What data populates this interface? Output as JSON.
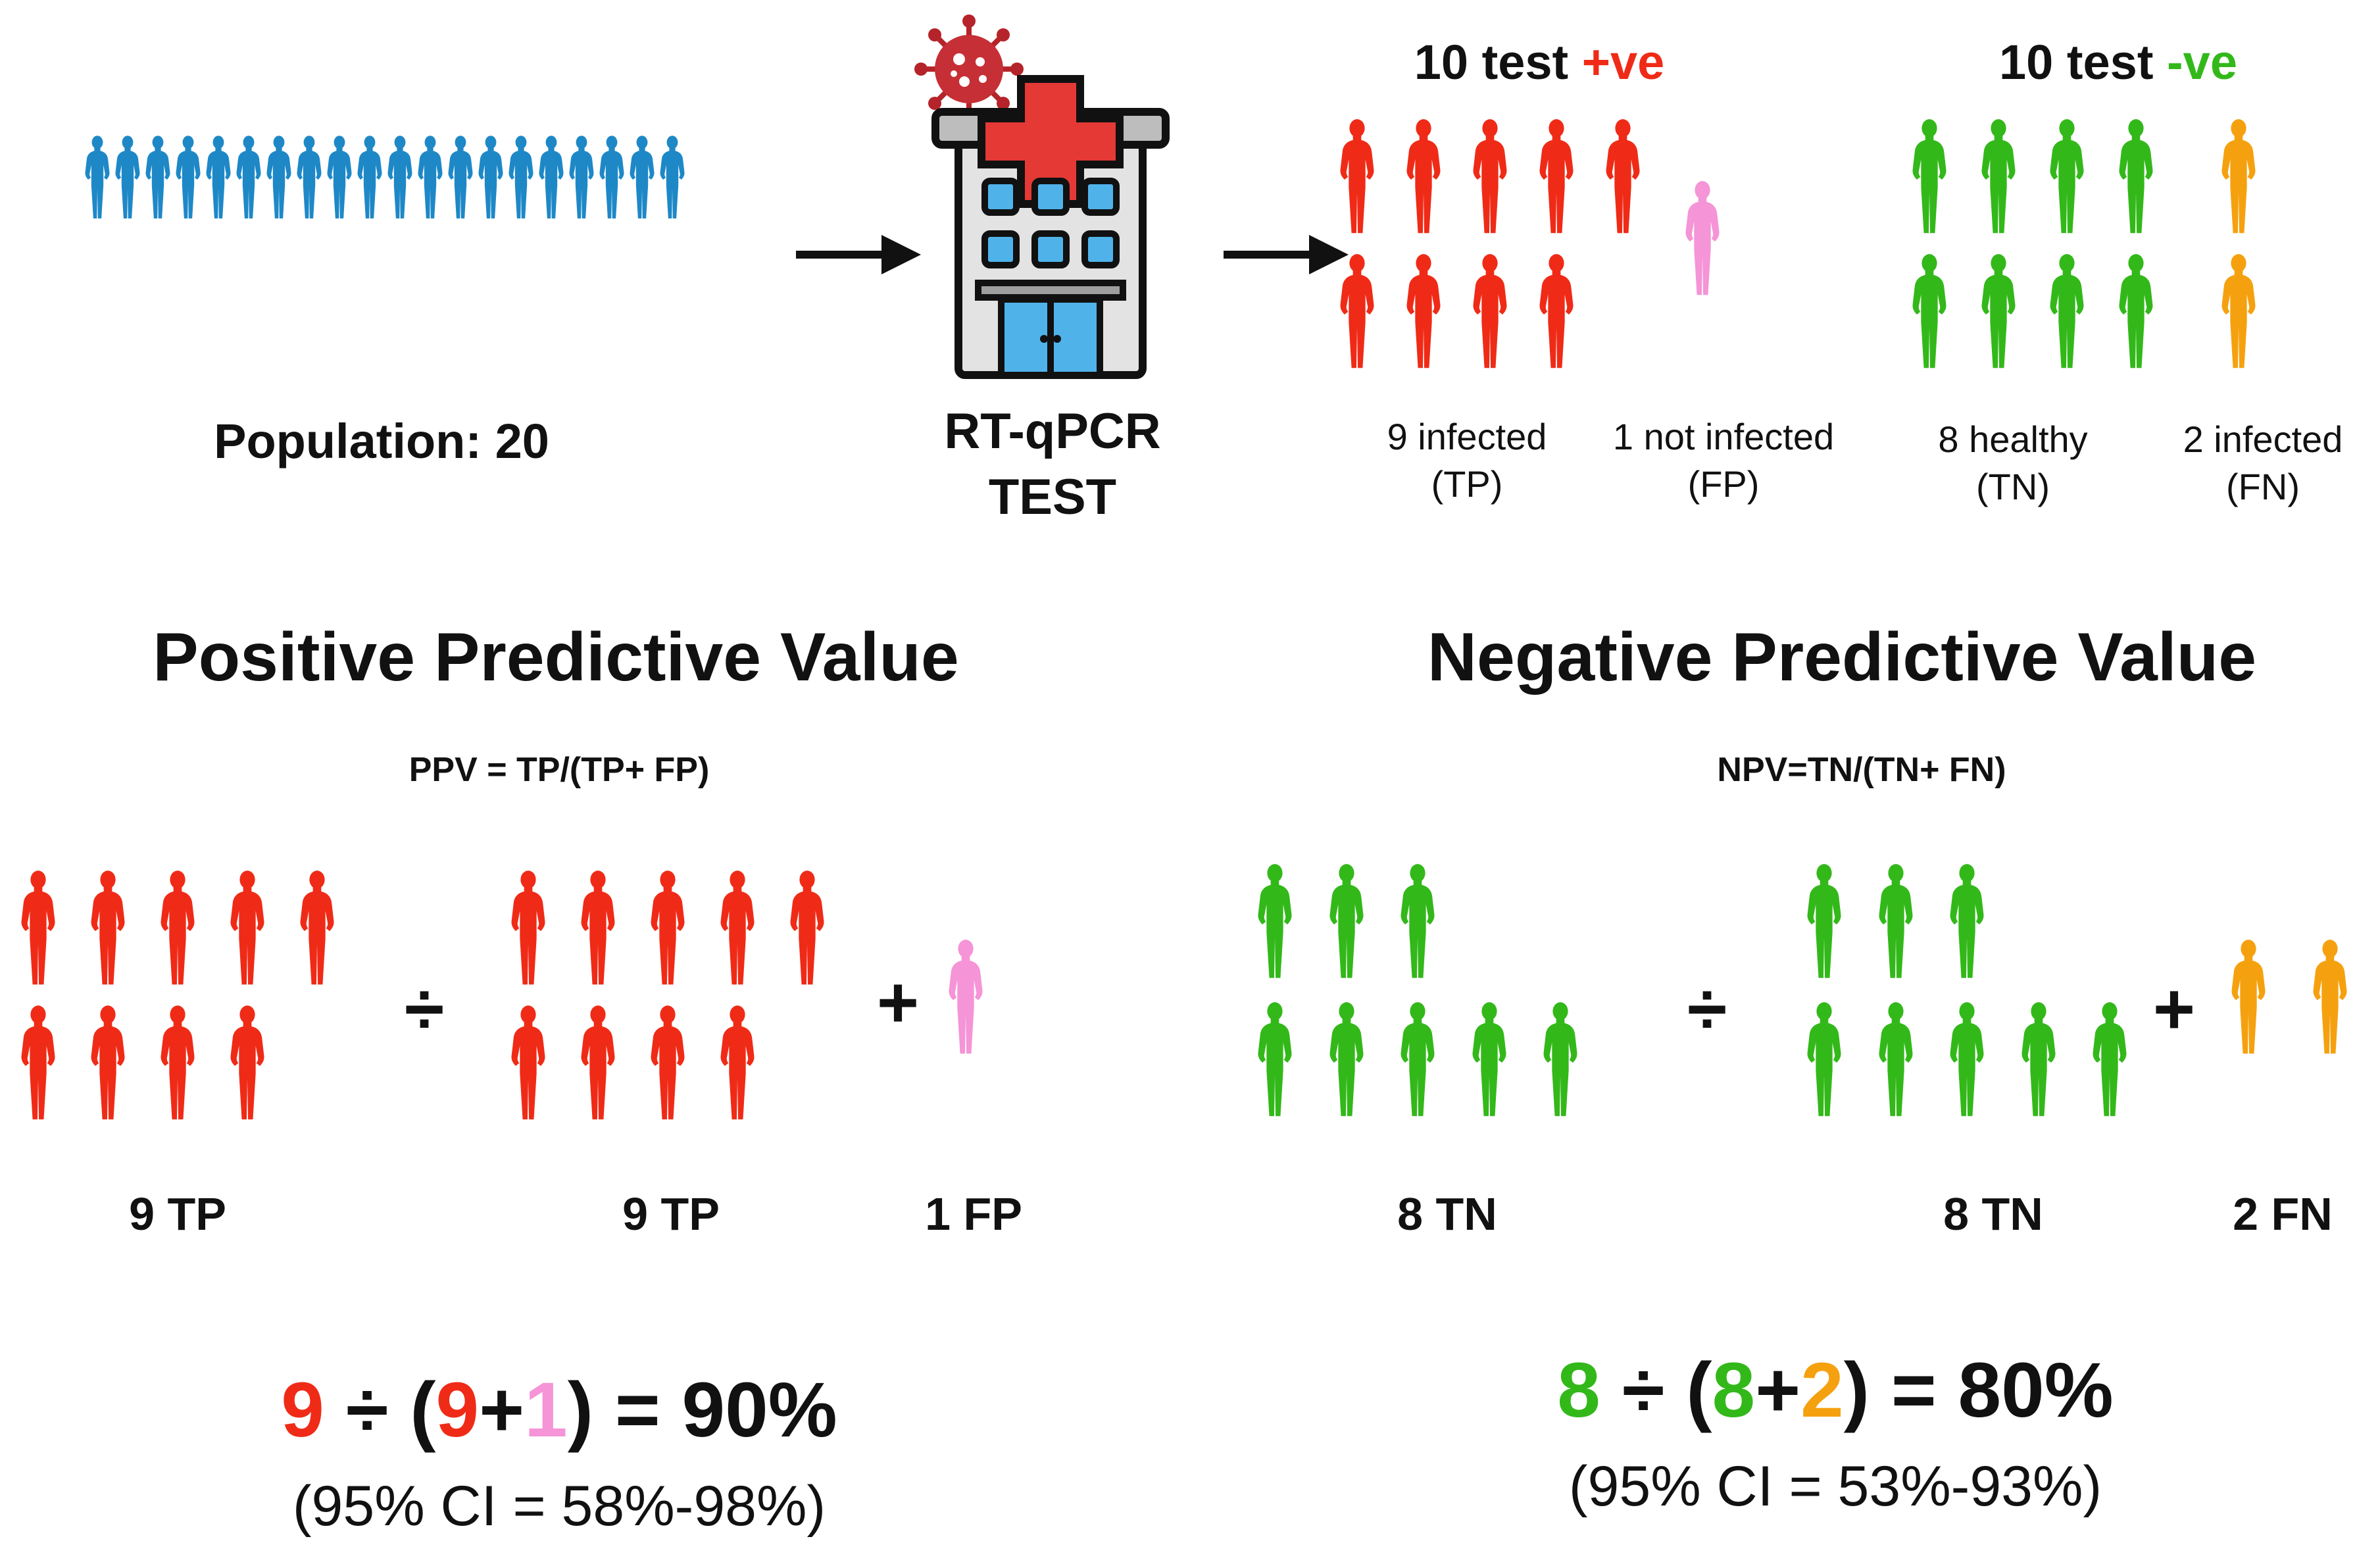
{
  "colors": {
    "population": "#1e88c7",
    "true_positive": "#ef2b17",
    "false_positive": "#f594d6",
    "true_negative": "#33b81a",
    "false_negative": "#f5a10f",
    "text": "#111111"
  },
  "population": {
    "label": "Population: 20",
    "count": 20
  },
  "test": {
    "line1": "RT-qPCR",
    "line2": "TEST",
    "icons": [
      "virus-icon",
      "hospital-icon"
    ]
  },
  "results": {
    "positive": {
      "prefix": "10 test",
      "sign": "+ve"
    },
    "negative": {
      "prefix": "10 test",
      "sign": "-ve"
    }
  },
  "groups": {
    "tp": {
      "line1": "9 infected",
      "line2": "(TP)",
      "count": 9
    },
    "fp": {
      "line1": "1 not infected",
      "line2": "(FP)",
      "count": 1
    },
    "tn": {
      "line1": "8 healthy",
      "line2": "(TN)",
      "count": 8
    },
    "fn": {
      "line1": "2 infected",
      "line2": "(FN)",
      "count": 2
    }
  },
  "ppv": {
    "title": "Positive Predictive Value",
    "formula": "PPV = TP/(TP+ FP)",
    "numerator_label": "9 TP",
    "denominator_tp_label": "9 TP",
    "denominator_fp_label": "1 FP",
    "divide": "÷",
    "plus": "+",
    "calc": {
      "a": "9",
      "div": " ÷ (",
      "b": "9",
      "plus": "+",
      "c": "1",
      "close": ")",
      "result": " = 90%"
    },
    "ci": "(95% CI = 58%-98%)"
  },
  "npv": {
    "title": "Negative Predictive Value",
    "formula": "NPV=TN/(TN+ FN)",
    "numerator_label": "8 TN",
    "denominator_tn_label": "8 TN",
    "denominator_fn_label": "2 FN",
    "divide": "÷",
    "plus": "+",
    "calc": {
      "a": "8",
      "div": " ÷ (",
      "b": "8",
      "plus": "+",
      "c": "2",
      "close": ")",
      "result": " = 80%"
    },
    "ci": "(95% CI = 53%-93%)"
  }
}
